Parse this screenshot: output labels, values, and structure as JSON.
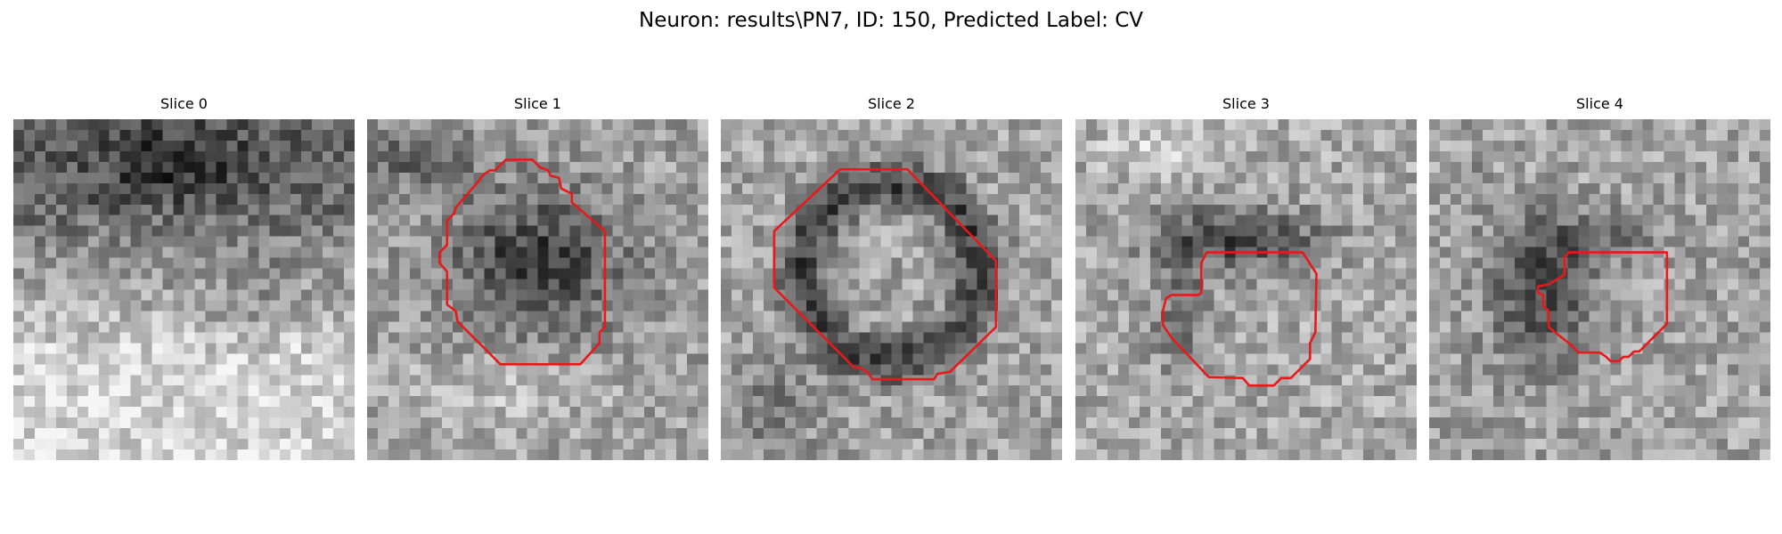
{
  "figure": {
    "title": "Neuron: results\\PN7, ID: 150, Predicted Label: CV"
  },
  "panels": [
    {
      "title": "Slice 0",
      "has_contour": false,
      "base_tone": "lighter-bottom",
      "dark_region": "top-band"
    },
    {
      "title": "Slice 1",
      "has_contour": true,
      "base_tone": "medium",
      "dark_region": "contour-interior"
    },
    {
      "title": "Slice 2",
      "has_contour": true,
      "base_tone": "medium",
      "dark_region": "contour-ring"
    },
    {
      "title": "Slice 3",
      "has_contour": true,
      "base_tone": "medium-light",
      "dark_region": "upper-arc"
    },
    {
      "title": "Slice 4",
      "has_contour": true,
      "base_tone": "medium-light",
      "dark_region": "left-arc"
    }
  ],
  "colors": {
    "contour": "#e8191b",
    "background": "#ffffff",
    "text": "#000000"
  },
  "image": {
    "grid_size": 32,
    "colormap": "gray"
  }
}
